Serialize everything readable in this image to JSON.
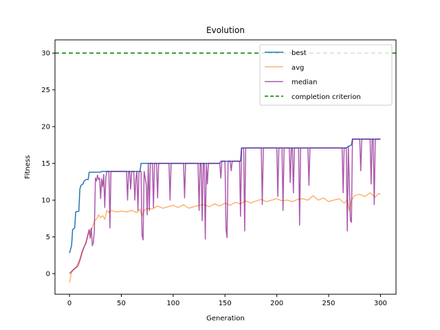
{
  "chart_data": {
    "type": "line",
    "title": "Evolution",
    "xlabel": "Generation",
    "ylabel": "Fitness",
    "xlim": [
      -14,
      315
    ],
    "ylim": [
      -2.8,
      31.8
    ],
    "xticks": [
      0,
      50,
      100,
      150,
      200,
      250,
      300
    ],
    "yticks": [
      0,
      5,
      10,
      15,
      20,
      25,
      30
    ],
    "grid": false,
    "legend_position": "top-right",
    "series": [
      {
        "name": "best",
        "color": "#1f77b4",
        "points": [
          [
            0,
            2.8
          ],
          [
            2,
            3.8
          ],
          [
            3,
            6.0
          ],
          [
            5,
            6.2
          ],
          [
            6,
            8.4
          ],
          [
            9,
            8.5
          ],
          [
            10,
            11.5
          ],
          [
            11,
            12.0
          ],
          [
            13,
            12.2
          ],
          [
            14,
            12.6
          ],
          [
            16,
            12.8
          ],
          [
            18,
            12.8
          ],
          [
            19,
            13.8
          ],
          [
            30,
            13.8
          ],
          [
            31,
            13.9
          ],
          [
            68,
            13.9
          ],
          [
            69,
            15.0
          ],
          [
            145,
            15.0
          ],
          [
            146,
            15.3
          ],
          [
            165,
            15.3
          ],
          [
            166,
            17.1
          ],
          [
            267,
            17.1
          ],
          [
            269,
            17.3
          ],
          [
            272,
            17.5
          ],
          [
            273,
            18.3
          ],
          [
            300,
            18.3
          ]
        ]
      },
      {
        "name": "avg",
        "color": "#ff7f0e",
        "opacity": 0.6,
        "points": [
          [
            0,
            -1.2
          ],
          [
            2,
            0.2
          ],
          [
            4,
            0.5
          ],
          [
            6,
            0.8
          ],
          [
            8,
            1.4
          ],
          [
            10,
            2.0
          ],
          [
            12,
            3.0
          ],
          [
            14,
            3.6
          ],
          [
            16,
            4.4
          ],
          [
            18,
            5.2
          ],
          [
            20,
            5.8
          ],
          [
            22,
            6.2
          ],
          [
            24,
            7.2
          ],
          [
            26,
            7.4
          ],
          [
            28,
            8.0
          ],
          [
            30,
            7.6
          ],
          [
            32,
            7.9
          ],
          [
            34,
            7.4
          ],
          [
            36,
            8.6
          ],
          [
            38,
            8.3
          ],
          [
            40,
            8.6
          ],
          [
            45,
            8.4
          ],
          [
            50,
            8.5
          ],
          [
            55,
            8.4
          ],
          [
            60,
            8.6
          ],
          [
            65,
            8.3
          ],
          [
            68,
            8.8
          ],
          [
            70,
            7.8
          ],
          [
            72,
            8.6
          ],
          [
            75,
            8.9
          ],
          [
            80,
            8.8
          ],
          [
            85,
            9.2
          ],
          [
            90,
            8.9
          ],
          [
            95,
            9.1
          ],
          [
            100,
            9.3
          ],
          [
            105,
            9.0
          ],
          [
            110,
            9.4
          ],
          [
            115,
            8.9
          ],
          [
            120,
            9.1
          ],
          [
            125,
            9.3
          ],
          [
            130,
            9.4
          ],
          [
            135,
            9.1
          ],
          [
            140,
            9.5
          ],
          [
            145,
            9.2
          ],
          [
            150,
            9.6
          ],
          [
            155,
            9.3
          ],
          [
            160,
            9.7
          ],
          [
            165,
            9.5
          ],
          [
            170,
            9.9
          ],
          [
            175,
            9.6
          ],
          [
            180,
            9.9
          ],
          [
            185,
            10.1
          ],
          [
            190,
            9.8
          ],
          [
            195,
            10.0
          ],
          [
            200,
            10.2
          ],
          [
            205,
            9.9
          ],
          [
            210,
            10.0
          ],
          [
            215,
            9.8
          ],
          [
            220,
            10.1
          ],
          [
            225,
            10.2
          ],
          [
            230,
            10.0
          ],
          [
            235,
            10.6
          ],
          [
            240,
            10.0
          ],
          [
            245,
            10.3
          ],
          [
            250,
            9.8
          ],
          [
            255,
            10.0
          ],
          [
            260,
            10.2
          ],
          [
            265,
            9.6
          ],
          [
            268,
            10.0
          ],
          [
            270,
            8.6
          ],
          [
            272,
            10.0
          ],
          [
            275,
            10.6
          ],
          [
            280,
            10.8
          ],
          [
            285,
            10.5
          ],
          [
            290,
            11.0
          ],
          [
            295,
            10.4
          ],
          [
            298,
            10.9
          ],
          [
            300,
            10.8
          ]
        ]
      },
      {
        "name": "median",
        "color": "#800080",
        "opacity": 0.65,
        "points": [
          [
            0,
            0
          ],
          [
            2,
            0.3
          ],
          [
            4,
            0.6
          ],
          [
            6,
            0.8
          ],
          [
            8,
            1.0
          ],
          [
            10,
            1.8
          ],
          [
            12,
            2.8
          ],
          [
            14,
            3.6
          ],
          [
            16,
            4.2
          ],
          [
            18,
            5.5
          ],
          [
            19,
            6.0
          ],
          [
            20,
            4.8
          ],
          [
            21,
            6.2
          ],
          [
            22,
            3.8
          ],
          [
            23,
            4.2
          ],
          [
            24,
            6.0
          ],
          [
            25,
            13.0
          ],
          [
            26,
            12.6
          ],
          [
            27,
            13.4
          ],
          [
            28,
            12.8
          ],
          [
            29,
            13.0
          ],
          [
            30,
            10.2
          ],
          [
            31,
            12.9
          ],
          [
            32,
            11.8
          ],
          [
            33,
            13.5
          ],
          [
            34,
            9.0
          ],
          [
            35,
            13.0
          ],
          [
            36,
            13.9
          ],
          [
            38,
            13.9
          ],
          [
            39,
            6.2
          ],
          [
            40,
            13.9
          ],
          [
            55,
            13.9
          ],
          [
            56,
            10.0
          ],
          [
            57,
            13.9
          ],
          [
            58,
            13.9
          ],
          [
            59,
            11.5
          ],
          [
            60,
            13.9
          ],
          [
            62,
            13.9
          ],
          [
            63,
            10.0
          ],
          [
            64,
            12.8
          ],
          [
            65,
            13.9
          ],
          [
            66,
            8.6
          ],
          [
            67,
            13.9
          ],
          [
            69,
            13.9
          ],
          [
            70,
            5.2
          ],
          [
            71,
            4.6
          ],
          [
            72,
            13.9
          ],
          [
            74,
            12.2
          ],
          [
            75,
            8.0
          ],
          [
            76,
            15.0
          ],
          [
            77,
            8.6
          ],
          [
            78,
            15.0
          ],
          [
            80,
            15.0
          ],
          [
            81,
            9.0
          ],
          [
            82,
            15.0
          ],
          [
            84,
            15.0
          ],
          [
            85,
            10.3
          ],
          [
            86,
            15.0
          ],
          [
            96,
            15.0
          ],
          [
            97,
            10.0
          ],
          [
            98,
            15.0
          ],
          [
            110,
            15.0
          ],
          [
            111,
            10.3
          ],
          [
            112,
            15.0
          ],
          [
            124,
            15.0
          ],
          [
            125,
            8.6
          ],
          [
            126,
            15.0
          ],
          [
            127,
            15.0
          ],
          [
            128,
            7.2
          ],
          [
            129,
            15.0
          ],
          [
            130,
            15.0
          ],
          [
            131,
            4.7
          ],
          [
            132,
            15.0
          ],
          [
            133,
            12.2
          ],
          [
            134,
            15.0
          ],
          [
            145,
            15.0
          ],
          [
            146,
            13.0
          ],
          [
            147,
            15.3
          ],
          [
            150,
            15.3
          ],
          [
            151,
            6.0
          ],
          [
            152,
            4.9
          ],
          [
            153,
            15.3
          ],
          [
            155,
            15.3
          ],
          [
            156,
            14.0
          ],
          [
            157,
            15.3
          ],
          [
            164,
            15.3
          ],
          [
            165,
            7.8
          ],
          [
            166,
            17.1
          ],
          [
            168,
            17.1
          ],
          [
            169,
            5.8
          ],
          [
            170,
            17.1
          ],
          [
            185,
            17.1
          ],
          [
            186,
            9.4
          ],
          [
            187,
            17.1
          ],
          [
            200,
            17.1
          ],
          [
            201,
            10.5
          ],
          [
            202,
            17.1
          ],
          [
            205,
            17.1
          ],
          [
            206,
            8.6
          ],
          [
            207,
            17.1
          ],
          [
            212,
            17.1
          ],
          [
            213,
            12.4
          ],
          [
            214,
            17.1
          ],
          [
            215,
            17.1
          ],
          [
            216,
            11.0
          ],
          [
            217,
            17.1
          ],
          [
            221,
            17.1
          ],
          [
            222,
            6.6
          ],
          [
            223,
            17.1
          ],
          [
            230,
            17.1
          ],
          [
            231,
            12.0
          ],
          [
            232,
            17.1
          ],
          [
            263,
            17.1
          ],
          [
            264,
            11.0
          ],
          [
            265,
            17.1
          ],
          [
            267,
            17.1
          ],
          [
            268,
            5.8
          ],
          [
            269,
            17.3
          ],
          [
            271,
            7.2
          ],
          [
            272,
            7.0
          ],
          [
            273,
            18.3
          ],
          [
            280,
            18.3
          ],
          [
            281,
            14.0
          ],
          [
            282,
            18.3
          ],
          [
            290,
            18.3
          ],
          [
            291,
            12.2
          ],
          [
            292,
            18.3
          ],
          [
            293,
            18.3
          ],
          [
            294,
            9.4
          ],
          [
            295,
            18.3
          ],
          [
            300,
            18.3
          ]
        ]
      },
      {
        "name": "completion criterion",
        "color": "#008000",
        "dashed": true,
        "hline": 30
      }
    ]
  }
}
